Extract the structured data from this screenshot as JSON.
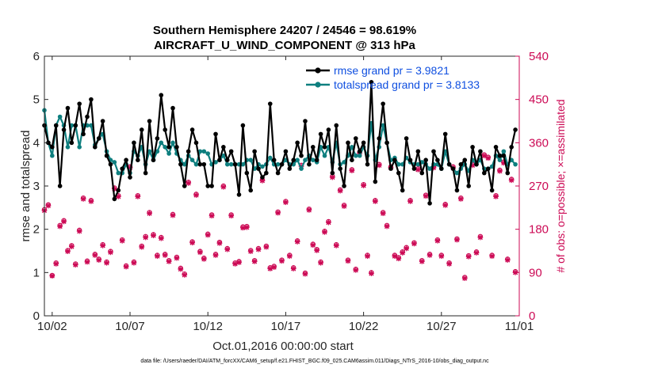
{
  "chart_data": {
    "type": "line",
    "title_line1": "Southern Hemisphere 24207 / 24546 = 98.619%",
    "title_line2": "AIRCRAFT_U_WIND_COMPONENT @ 313 hPa",
    "xlabel": "Oct.01,2016 00:00:00 start",
    "ylabel_left": "rmse and totalspread",
    "ylabel_right": "# of obs: o=possible; ×=assimilated",
    "footnote": "data file: /Users/raeder/DAI/ATM_forcXX/CAM6_setup/f.e21.FHIST_BGC.f09_025.CAM6assim.011/Diags_NTrS_2016-10/obs_diag_output.nc",
    "xlim": [
      1.5,
      32.0
    ],
    "ylim_left": [
      0,
      6
    ],
    "ylim_right": [
      0,
      540
    ],
    "x_ticks": [
      2,
      7,
      12,
      17,
      22,
      27,
      32
    ],
    "x_tick_labels": [
      "10/02",
      "10/07",
      "10/12",
      "10/17",
      "10/22",
      "10/27",
      "11/01"
    ],
    "y_left_ticks": [
      0,
      1,
      2,
      3,
      4,
      5,
      6
    ],
    "y_right_ticks": [
      0,
      90,
      180,
      270,
      360,
      450,
      540
    ],
    "colors": {
      "rmse": "#000000",
      "spread": "#0e7f7f",
      "obs": "#cc0a55",
      "legend_text": "#0f4fe0"
    },
    "legend": {
      "placement": "top-right",
      "entries": [
        {
          "label": "rmse grand pr = 3.9821",
          "series": "rmse"
        },
        {
          "label": "totalspread grand pr = 3.8133",
          "series": "spread"
        }
      ]
    },
    "x": [
      1.5,
      1.75,
      2.0,
      2.25,
      2.5,
      2.75,
      3.0,
      3.25,
      3.5,
      3.75,
      4.0,
      4.25,
      4.5,
      4.75,
      5.0,
      5.25,
      5.5,
      5.75,
      6.0,
      6.25,
      6.5,
      6.75,
      7.0,
      7.25,
      7.5,
      7.75,
      8.0,
      8.25,
      8.5,
      8.75,
      9.0,
      9.25,
      9.5,
      9.75,
      10.0,
      10.25,
      10.5,
      10.75,
      11.0,
      11.25,
      11.5,
      11.75,
      12.0,
      12.25,
      12.5,
      12.75,
      13.0,
      13.25,
      13.5,
      13.75,
      14.0,
      14.25,
      14.5,
      14.75,
      15.0,
      15.25,
      15.5,
      15.75,
      16.0,
      16.25,
      16.5,
      16.75,
      17.0,
      17.25,
      17.5,
      17.75,
      18.0,
      18.25,
      18.5,
      18.75,
      19.0,
      19.25,
      19.5,
      19.75,
      20.0,
      20.25,
      20.5,
      20.75,
      21.0,
      21.25,
      21.5,
      21.75,
      22.0,
      22.25,
      22.5,
      22.75,
      23.0,
      23.25,
      23.5,
      23.75,
      24.0,
      24.25,
      24.5,
      24.75,
      25.0,
      25.25,
      25.5,
      25.75,
      26.0,
      26.25,
      26.5,
      26.75,
      27.0,
      27.25,
      27.5,
      27.75,
      28.0,
      28.25,
      28.5,
      28.75,
      29.0,
      29.25,
      29.5,
      29.75,
      30.0,
      30.25,
      30.5,
      30.75,
      31.0,
      31.25,
      31.5,
      31.75
    ],
    "rmse": [
      4.4,
      4.0,
      3.9,
      4.4,
      3.0,
      4.3,
      4.8,
      4.0,
      4.4,
      4.9,
      4.2,
      4.6,
      5.0,
      3.9,
      4.1,
      4.5,
      3.7,
      3.5,
      2.7,
      2.9,
      3.4,
      3.6,
      3.2,
      4.0,
      3.6,
      4.3,
      3.3,
      4.5,
      3.6,
      4.1,
      5.1,
      4.3,
      3.9,
      4.8,
      3.9,
      3.5,
      3.0,
      3.8,
      4.3,
      4.0,
      3.5,
      3.5,
      3.0,
      3.0,
      4.2,
      3.6,
      3.9,
      3.6,
      3.8,
      3.5,
      2.8,
      4.4,
      3.3,
      2.9,
      3.8,
      3.4,
      3.2,
      3.3,
      4.9,
      3.6,
      3.3,
      3.5,
      3.8,
      3.4,
      3.6,
      4.0,
      3.7,
      4.5,
      3.5,
      3.9,
      3.6,
      4.2,
      3.9,
      4.3,
      3.3,
      4.4,
      3.4,
      3.0,
      4.0,
      3.6,
      4.1,
      3.8,
      4.0,
      3.5,
      5.4,
      3.1,
      4.1,
      4.9,
      4.0,
      3.4,
      3.6,
      3.3,
      2.9,
      4.1,
      3.6,
      3.4,
      3.8,
      3.3,
      3.6,
      2.6,
      3.8,
      3.6,
      3.4,
      4.2,
      3.5,
      3.4,
      2.9,
      3.5,
      3.6,
      3.0,
      3.9,
      3.5,
      3.8,
      3.3,
      3.4,
      2.9,
      3.9,
      3.7,
      3.7,
      3.3,
      3.9,
      4.3
    ],
    "spread": [
      4.75,
      4.0,
      3.7,
      4.4,
      4.6,
      4.4,
      3.9,
      4.4,
      4.4,
      3.9,
      4.4,
      4.4,
      4.4,
      3.95,
      4.1,
      4.2,
      3.8,
      3.6,
      3.55,
      3.3,
      3.3,
      3.5,
      3.3,
      3.8,
      3.7,
      3.9,
      3.5,
      3.8,
      3.6,
      3.8,
      4.0,
      3.9,
      3.75,
      4.0,
      3.75,
      3.6,
      3.5,
      3.7,
      3.6,
      3.5,
      3.8,
      3.8,
      3.75,
      3.5,
      3.55,
      3.6,
      3.7,
      3.5,
      3.5,
      3.5,
      3.5,
      3.5,
      3.6,
      3.6,
      3.4,
      3.5,
      3.45,
      3.5,
      3.65,
      3.5,
      3.5,
      3.5,
      3.6,
      3.5,
      3.5,
      3.6,
      3.4,
      3.6,
      3.7,
      3.6,
      3.55,
      3.9,
      3.7,
      3.9,
      3.55,
      4.0,
      3.5,
      3.55,
      3.7,
      3.9,
      3.7,
      3.7,
      3.9,
      3.7,
      4.45,
      3.6,
      3.9,
      4.4,
      4.0,
      3.6,
      3.65,
      3.5,
      3.5,
      3.65,
      3.55,
      3.5,
      3.5,
      3.55,
      3.5,
      3.4,
      3.5,
      3.5,
      3.4,
      3.8,
      3.5,
      3.4,
      3.3,
      3.4,
      3.5,
      3.35,
      3.6,
      3.5,
      3.6,
      3.4,
      3.4,
      3.45,
      3.7,
      3.6,
      3.8,
      3.5,
      3.6,
      3.5
    ],
    "obs_possible": [
      221,
      231,
      84,
      110,
      188,
      198,
      136,
      146,
      108,
      178,
      245,
      114,
      240,
      128,
      118,
      148,
      112,
      134,
      266,
      250,
      158,
      104,
      310,
      112,
      250,
      145,
      165,
      215,
      169,
      126,
      163,
      128,
      115,
      211,
      122,
      99,
      87,
      278,
      154,
      253,
      134,
      120,
      170,
      210,
      128,
      153,
      270,
      140,
      210,
      110,
      113,
      185,
      186,
      136,
      115,
      140,
      283,
      145,
      100,
      103,
      216,
      116,
      238,
      126,
      100,
      156,
      313,
      89,
      222,
      149,
      138,
      112,
      176,
      196,
      290,
      148,
      262,
      230,
      116,
      304,
      97,
      340,
      273,
      126,
      90,
      240,
      315,
      215,
      188,
      310,
      126,
      121,
      133,
      142,
      240,
      152,
      306,
      115,
      251,
      128,
      310,
      158,
      126,
      232,
      110,
      310,
      160,
      245,
      80,
      125,
      315,
      133,
      165,
      335,
      330,
      126,
      250,
      303,
      320,
      118,
      284,
      92
    ],
    "obs_assimilated": [
      219,
      229,
      83,
      108,
      186,
      196,
      134,
      144,
      106,
      176,
      243,
      112,
      238,
      126,
      116,
      146,
      110,
      132,
      264,
      248,
      156,
      102,
      308,
      110,
      248,
      143,
      163,
      213,
      167,
      124,
      161,
      126,
      113,
      209,
      120,
      97,
      85,
      276,
      152,
      251,
      132,
      118,
      168,
      208,
      126,
      151,
      268,
      138,
      208,
      108,
      111,
      183,
      184,
      134,
      113,
      138,
      281,
      143,
      98,
      101,
      214,
      114,
      236,
      124,
      98,
      154,
      311,
      87,
      220,
      147,
      136,
      110,
      174,
      194,
      288,
      146,
      260,
      228,
      114,
      302,
      95,
      338,
      271,
      124,
      88,
      238,
      313,
      213,
      186,
      308,
      124,
      119,
      131,
      140,
      238,
      150,
      304,
      113,
      249,
      126,
      308,
      156,
      124,
      230,
      108,
      308,
      158,
      243,
      78,
      123,
      313,
      131,
      163,
      333,
      328,
      124,
      248,
      301,
      318,
      116,
      282,
      90
    ]
  }
}
